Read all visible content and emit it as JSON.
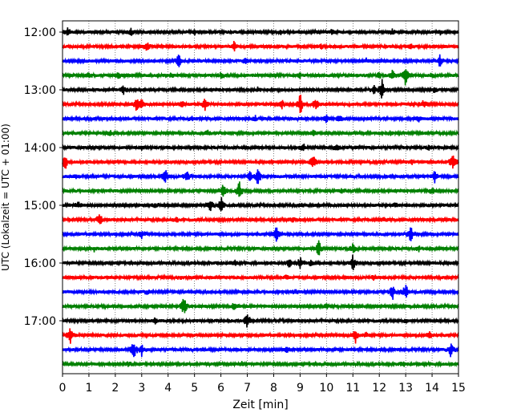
{
  "chart_data": {
    "type": "line",
    "title": "",
    "xlabel": "Zeit  [min]",
    "ylabel": "UTC (Lokalzeit = UTC + 01:00)",
    "xlim": [
      0,
      15
    ],
    "x_ticks": [
      0,
      1,
      2,
      3,
      4,
      5,
      6,
      7,
      8,
      9,
      10,
      11,
      12,
      13,
      14,
      15
    ],
    "x_tick_labels": [
      "0",
      "1",
      "2",
      "3",
      "4",
      "5",
      "6",
      "7",
      "8",
      "9",
      "10",
      "11",
      "12",
      "13",
      "14",
      "15"
    ],
    "y_tick_labels": [
      "12:00",
      "13:00",
      "14:00",
      "15:00",
      "16:00",
      "17:00"
    ],
    "grid": "vertical dotted",
    "trace_interval_minutes": 15,
    "colors": [
      "#000000",
      "#ff0000",
      "#0000ff",
      "#008000"
    ],
    "traces": [
      {
        "utc": "12:00",
        "events": [
          [
            0.2,
            0.5
          ],
          [
            2.6,
            0.4
          ],
          [
            5.0,
            0.3
          ],
          [
            8.3,
            0.3
          ],
          [
            10.2,
            0.3
          ],
          [
            12.5,
            0.4
          ],
          [
            14.3,
            0.3
          ]
        ]
      },
      {
        "utc": "12:15",
        "events": [
          [
            3.2,
            0.7
          ],
          [
            6.5,
            0.9
          ],
          [
            9.8,
            0.3
          ],
          [
            13.2,
            0.3
          ]
        ]
      },
      {
        "utc": "12:30",
        "events": [
          [
            4.4,
            0.9
          ],
          [
            6.9,
            0.4
          ],
          [
            14.3,
            0.8
          ],
          [
            11.5,
            0.3
          ]
        ]
      },
      {
        "utc": "12:45",
        "events": [
          [
            1.0,
            0.5
          ],
          [
            2.1,
            0.5
          ],
          [
            4.1,
            0.3
          ],
          [
            6.0,
            0.3
          ],
          [
            9.0,
            0.3
          ],
          [
            12.0,
            0.4
          ],
          [
            12.5,
            0.8
          ],
          [
            13.0,
            1.5
          ],
          [
            14.0,
            0.3
          ]
        ]
      },
      {
        "utc": "13:00",
        "events": [
          [
            2.3,
            0.6
          ],
          [
            7.4,
            0.3
          ],
          [
            11.8,
            0.5
          ],
          [
            12.1,
            1.4
          ],
          [
            14.1,
            0.3
          ]
        ]
      },
      {
        "utc": "13:15",
        "events": [
          [
            2.8,
            0.9
          ],
          [
            3.0,
            0.7
          ],
          [
            4.5,
            0.4
          ],
          [
            5.4,
            0.9
          ],
          [
            8.3,
            0.6
          ],
          [
            9.0,
            1.6
          ],
          [
            9.6,
            0.8
          ],
          [
            13.7,
            0.7
          ]
        ]
      },
      {
        "utc": "13:30",
        "events": [
          [
            4.9,
            0.3
          ],
          [
            7.3,
            0.3
          ],
          [
            10.0,
            0.5
          ],
          [
            10.5,
            0.5
          ],
          [
            13.5,
            0.3
          ]
        ]
      },
      {
        "utc": "13:45",
        "events": [
          [
            1.8,
            0.3
          ],
          [
            5.5,
            0.3
          ],
          [
            9.5,
            0.3
          ],
          [
            12.4,
            0.3
          ]
        ]
      },
      {
        "utc": "14:00",
        "events": [
          [
            3.0,
            0.3
          ],
          [
            9.1,
            0.6
          ],
          [
            10.4,
            0.4
          ],
          [
            13.9,
            0.3
          ]
        ]
      },
      {
        "utc": "14:15",
        "events": [
          [
            0.1,
            1.2
          ],
          [
            9.5,
            1.0
          ],
          [
            13.2,
            0.3
          ],
          [
            14.8,
            1.2
          ]
        ]
      },
      {
        "utc": "14:30",
        "events": [
          [
            0.5,
            0.3
          ],
          [
            3.9,
            0.9
          ],
          [
            4.7,
            0.8
          ],
          [
            7.1,
            0.8
          ],
          [
            7.4,
            1.2
          ],
          [
            14.1,
            0.8
          ]
        ]
      },
      {
        "utc": "14:45",
        "events": [
          [
            6.1,
            1.2
          ],
          [
            6.7,
            1.4
          ],
          [
            10.6,
            0.3
          ],
          [
            14.0,
            0.5
          ]
        ]
      },
      {
        "utc": "15:00",
        "events": [
          [
            0.6,
            0.4
          ],
          [
            3.5,
            0.3
          ],
          [
            5.6,
            0.9
          ],
          [
            6.0,
            1.2
          ],
          [
            9.0,
            0.3
          ],
          [
            12.6,
            0.3
          ]
        ]
      },
      {
        "utc": "15:15",
        "events": [
          [
            1.4,
            0.8
          ],
          [
            4.3,
            0.3
          ],
          [
            8.7,
            0.3
          ],
          [
            12.2,
            0.3
          ]
        ]
      },
      {
        "utc": "15:30",
        "events": [
          [
            3.0,
            0.6
          ],
          [
            8.1,
            1.2
          ],
          [
            13.2,
            1.2
          ]
        ]
      },
      {
        "utc": "15:45",
        "events": [
          [
            1.2,
            0.3
          ],
          [
            9.7,
            1.2
          ],
          [
            11.0,
            0.6
          ],
          [
            13.5,
            0.3
          ]
        ]
      },
      {
        "utc": "16:00",
        "events": [
          [
            6.5,
            0.4
          ],
          [
            8.6,
            0.6
          ],
          [
            9.0,
            0.8
          ],
          [
            9.4,
            0.4
          ],
          [
            11.0,
            1.0
          ]
        ]
      },
      {
        "utc": "16:15",
        "events": [
          [
            4.5,
            0.3
          ],
          [
            8.5,
            0.3
          ],
          [
            11.8,
            0.3
          ]
        ]
      },
      {
        "utc": "16:30",
        "events": [
          [
            12.5,
            1.1
          ],
          [
            13.0,
            1.2
          ],
          [
            8.8,
            0.3
          ],
          [
            3.2,
            0.3
          ]
        ]
      },
      {
        "utc": "16:45",
        "events": [
          [
            4.6,
            1.3
          ],
          [
            6.5,
            0.5
          ],
          [
            10.0,
            0.3
          ]
        ]
      },
      {
        "utc": "17:00",
        "events": [
          [
            7.0,
            1.2
          ],
          [
            3.5,
            0.3
          ],
          [
            13.0,
            0.3
          ]
        ]
      },
      {
        "utc": "17:15",
        "events": [
          [
            0.3,
            1.3
          ],
          [
            11.1,
            1.0
          ],
          [
            11.5,
            0.4
          ],
          [
            13.9,
            0.4
          ]
        ]
      },
      {
        "utc": "17:30",
        "events": [
          [
            2.7,
            1.3
          ],
          [
            3.0,
            0.8
          ],
          [
            14.7,
            1.0
          ],
          [
            8.5,
            0.3
          ]
        ]
      },
      {
        "utc": "17:45",
        "events": [
          [
            2.5,
            0.3
          ],
          [
            6.8,
            0.3
          ],
          [
            12.9,
            0.3
          ]
        ]
      }
    ]
  }
}
